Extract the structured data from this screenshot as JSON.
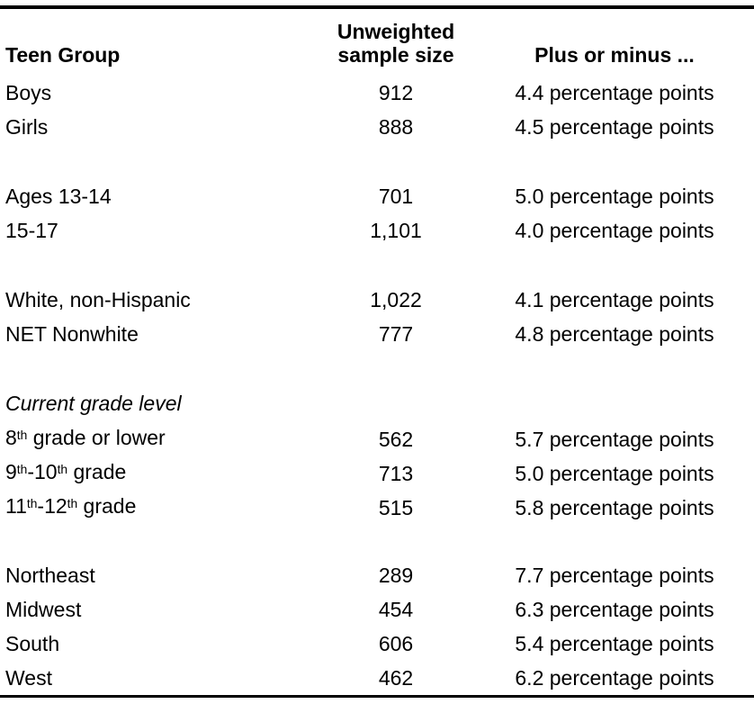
{
  "colors": {
    "text": "#000000",
    "rule": "#000000",
    "background": "#ffffff"
  },
  "table": {
    "header": {
      "col1": "Teen Group",
      "col2_line1": "Unweighted",
      "col2_line2": "sample size",
      "col3": "Plus or minus ..."
    },
    "groups": [
      {
        "rows": [
          {
            "label": [
              [
                "Boys"
              ]
            ],
            "size": "912",
            "moe": "4.4 percentage points"
          },
          {
            "label": [
              [
                "Girls"
              ]
            ],
            "size": "888",
            "moe": "4.5 percentage points"
          }
        ]
      },
      {
        "rows": [
          {
            "label": [
              [
                "Ages 13-14"
              ]
            ],
            "size": "701",
            "moe": "5.0 percentage points"
          },
          {
            "label": [
              [
                "15-17"
              ]
            ],
            "size": "1,101",
            "moe": "4.0 percentage points"
          }
        ]
      },
      {
        "rows": [
          {
            "label": [
              [
                "White, non-Hispanic"
              ]
            ],
            "size": "1,022",
            "moe": "4.1 percentage points"
          },
          {
            "label": [
              [
                "NET Nonwhite"
              ]
            ],
            "size": "777",
            "moe": "4.8 percentage points"
          }
        ]
      },
      {
        "section_label": "Current grade level",
        "rows": [
          {
            "label": [
              [
                "8"
              ],
              [
                "th",
                "sup"
              ],
              [
                " grade or lower"
              ]
            ],
            "size": "562",
            "moe": "5.7 percentage points"
          },
          {
            "label": [
              [
                "9"
              ],
              [
                "th",
                "sup"
              ],
              [
                "-10"
              ],
              [
                "th",
                "sup"
              ],
              [
                " grade"
              ]
            ],
            "size": "713",
            "moe": "5.0 percentage points"
          },
          {
            "label": [
              [
                "11"
              ],
              [
                "th",
                "sup"
              ],
              [
                "-12"
              ],
              [
                "th",
                "sup"
              ],
              [
                " grade"
              ]
            ],
            "size": "515",
            "moe": "5.8 percentage points"
          }
        ]
      },
      {
        "rows": [
          {
            "label": [
              [
                "Northeast"
              ]
            ],
            "size": "289",
            "moe": "7.7 percentage points"
          },
          {
            "label": [
              [
                "Midwest"
              ]
            ],
            "size": "454",
            "moe": "6.3 percentage points"
          },
          {
            "label": [
              [
                "South"
              ]
            ],
            "size": "606",
            "moe": "5.4 percentage points"
          },
          {
            "label": [
              [
                "West"
              ]
            ],
            "size": "462",
            "moe": "6.2 percentage points"
          }
        ]
      }
    ]
  }
}
